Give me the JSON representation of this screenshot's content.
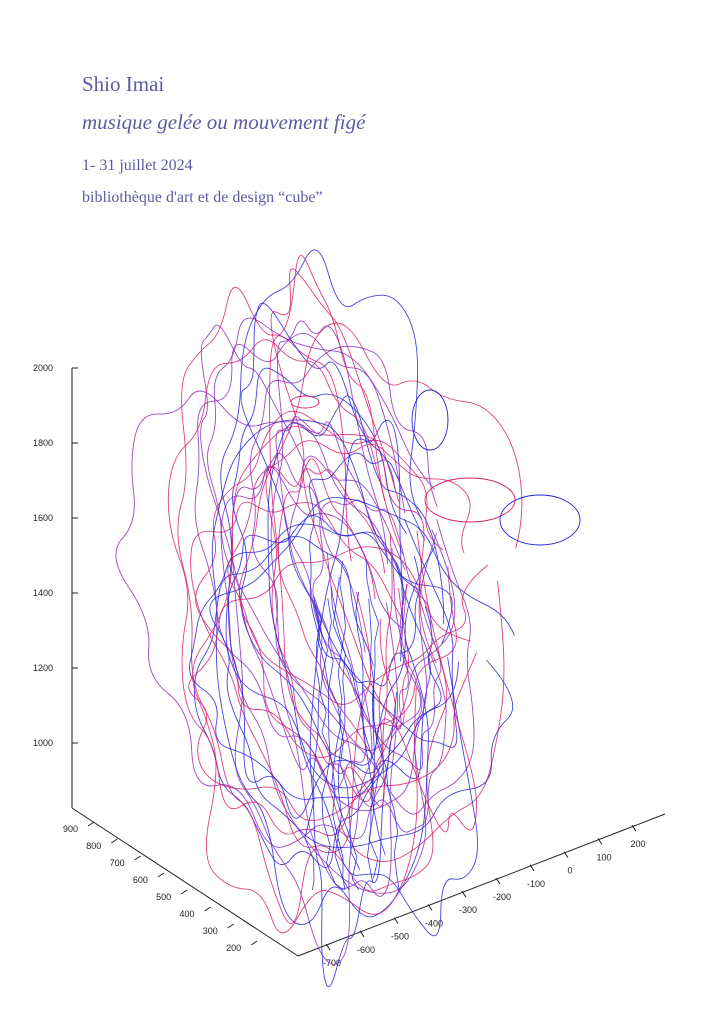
{
  "poster": {
    "artist": "Shio Imai",
    "title": "musique gelée ou mouvement figé",
    "dates": "1- 31 juillet 2024",
    "venue": "bibliothèque d'art et de design “cube”",
    "text_color": "#5d5aa3"
  },
  "chart_data": {
    "type": "line3d",
    "z_ticks": [
      "2000",
      "1800",
      "1600",
      "1400",
      "1200",
      "1000"
    ],
    "y_ticks": [
      "900",
      "800",
      "700",
      "600",
      "500",
      "400",
      "300",
      "200"
    ],
    "x_ticks": [
      "-700",
      "-600",
      "-500",
      "-400",
      "-300",
      "-200",
      "-100",
      "0",
      "100",
      "200"
    ],
    "zlim": [
      800,
      2000
    ],
    "ylim": [
      150,
      950
    ],
    "xlim": [
      -750,
      250
    ],
    "series_colors": [
      "#d81e6a",
      "#2424d6",
      "#8a2bbd"
    ],
    "grid": false
  }
}
